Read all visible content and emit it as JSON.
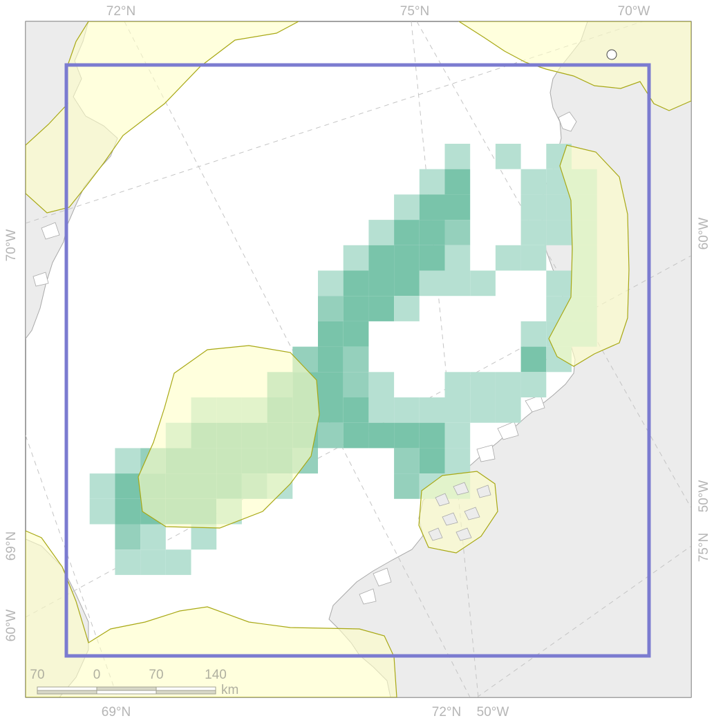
{
  "map": {
    "colors": {
      "land": "#ececec",
      "land_outline": "#a8a8a8",
      "sea": "#ffffff",
      "zone_fill": "#ffffc6",
      "zone_outline": "#a8a814",
      "grid_light": "#b6e0d2",
      "grid_mid": "#95d0bc",
      "grid_dark": "#79c4aa",
      "study_box": "#7b7bd0",
      "graticule": "#c4c4c4",
      "label": "#b5b5b5"
    },
    "graticule_labels": {
      "top": [
        "72°N",
        "75°N",
        "70°W"
      ],
      "bottom": [
        "69°N",
        "72°N",
        "50°W"
      ],
      "left": [
        "70°W",
        "69°N",
        "60°W"
      ],
      "right": [
        "60°W",
        "50°W",
        "75°N"
      ]
    },
    "scale_bar": {
      "ticks": [
        "70",
        "0",
        "70",
        "140"
      ],
      "unit": "km"
    }
  }
}
